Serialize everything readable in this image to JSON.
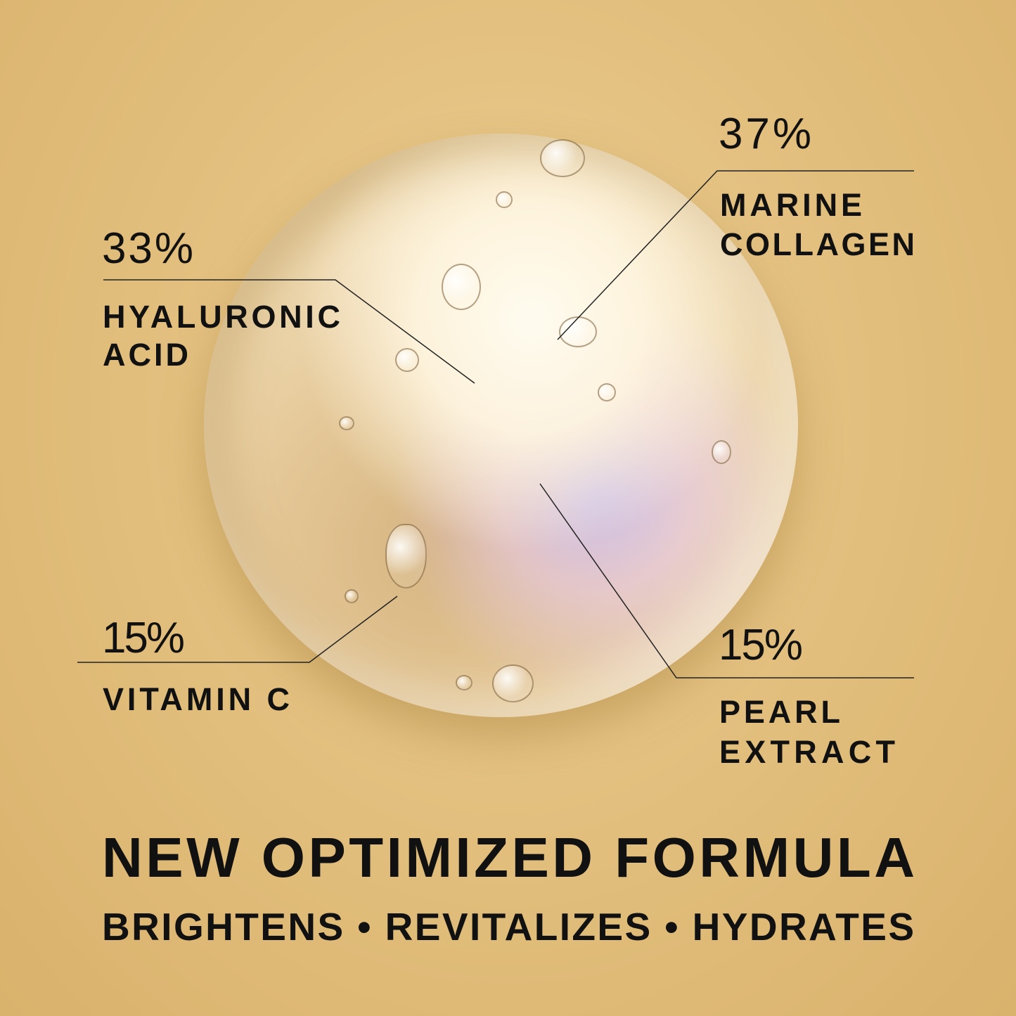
{
  "ingredients": [
    {
      "percent": "37%",
      "name_line1": "MARINE",
      "name_line2": "COLLAGEN"
    },
    {
      "percent": "33%",
      "name_line1": "HYALURONIC",
      "name_line2": "ACID"
    },
    {
      "percent": "15%",
      "name_line1": "VITAMIN C",
      "name_line2": ""
    },
    {
      "percent": "15%",
      "name_line1": "PEARL",
      "name_line2": "EXTRACT"
    }
  ],
  "headline": "NEW OPTIMIZED FORMULA",
  "benefits": "BRIGHTENS • REVITALIZES • HYDRATES",
  "colors": {
    "background": "#e3c07f",
    "text": "#111111"
  }
}
